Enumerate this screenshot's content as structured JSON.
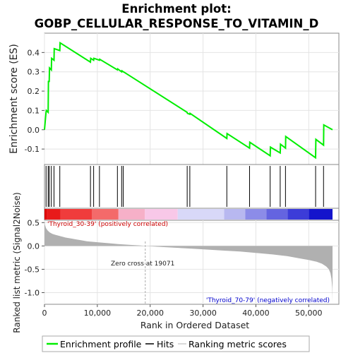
{
  "chart_data": {
    "type": "line",
    "title_line1": "Enrichment plot:",
    "title_line2": "GOBP_CELLULAR_RESPONSE_TO_VITAMIN_D",
    "ylabel_top": "Enrichment score (ES)",
    "ylabel_bottom": "Ranked list metric (Signal2Noise)",
    "xlabel": "Rank in Ordered Dataset",
    "xlim": [
      0,
      55000
    ],
    "es_ylim": [
      -0.18,
      0.5
    ],
    "metric_ylim": [
      -1.25,
      0.55
    ],
    "x_ticks": [
      0,
      10000,
      20000,
      30000,
      40000,
      50000
    ],
    "x_tick_labels": [
      "0",
      "10,000",
      "20,000",
      "30,000",
      "40,000",
      "50,000"
    ],
    "es_ticks": [
      -0.1,
      0.0,
      0.1,
      0.2,
      0.3,
      0.4
    ],
    "es_tick_labels": [
      "-0.1",
      "0.0",
      "0.1",
      "0.2",
      "0.3",
      "0.4"
    ],
    "metric_ticks": [
      -1.0,
      -0.5,
      0.0,
      0.5
    ],
    "metric_tick_labels": [
      "-1.0",
      "-0.5",
      "0.0",
      "0.5"
    ],
    "series": [
      {
        "name": "Enrichment profile",
        "x": [
          0,
          300,
          350,
          700,
          750,
          900,
          950,
          1300,
          1350,
          1800,
          1850,
          2900,
          2950,
          8700,
          8750,
          9300,
          9350,
          10400,
          10450,
          13800,
          13850,
          14600,
          14650,
          14900,
          14950,
          27000,
          27050,
          27500,
          27550,
          34500,
          34550,
          38800,
          38850,
          42700,
          42750,
          44600,
          44650,
          45600,
          45650,
          51300,
          51350,
          52800,
          52850,
          54500
        ],
        "y": [
          0.0,
          0.09,
          0.1,
          0.09,
          0.25,
          0.25,
          0.32,
          0.31,
          0.37,
          0.36,
          0.42,
          0.41,
          0.45,
          0.35,
          0.37,
          0.36,
          0.37,
          0.36,
          0.365,
          0.31,
          0.315,
          0.3,
          0.305,
          0.3,
          0.3,
          0.09,
          0.085,
          0.08,
          0.085,
          -0.045,
          -0.02,
          -0.095,
          -0.065,
          -0.135,
          -0.09,
          -0.12,
          -0.075,
          -0.095,
          -0.035,
          -0.145,
          -0.05,
          -0.08,
          0.025,
          0.0
        ]
      }
    ],
    "hits": [
      300,
      700,
      900,
      1300,
      1800,
      2900,
      8700,
      9300,
      10400,
      13800,
      14600,
      14900,
      27000,
      27500,
      34500,
      38800,
      42700,
      44600,
      45600,
      51300,
      52800
    ],
    "zero_cross": 19071,
    "zero_cross_label": "Zero cross at 19071",
    "pos_label": "'Thyroid_30-39' (positively correlated)",
    "neg_label": "'Thyroid_70-79' (negatively correlated)",
    "legend": [
      "Enrichment profile",
      "Hits",
      "Ranking metric scores"
    ],
    "colors": {
      "es_line": "#00ee00",
      "hits": "#000000",
      "metric_fill": "#b0b0b0",
      "pos_text": "#cc0000",
      "neg_text": "#0000cc",
      "zero_cross_line": "#aaaaaa"
    },
    "heatbar_segments": [
      {
        "x0": 0,
        "x1": 500,
        "color": "#dd0000"
      },
      {
        "x0": 500,
        "x1": 3000,
        "color": "#e81a1a"
      },
      {
        "x0": 3000,
        "x1": 9000,
        "color": "#f03c3c"
      },
      {
        "x0": 9000,
        "x1": 14000,
        "color": "#f46a6a"
      },
      {
        "x0": 14000,
        "x1": 19000,
        "color": "#f6b0c8"
      },
      {
        "x0": 19000,
        "x1": 25200,
        "color": "#f8c8e8"
      },
      {
        "x0": 25200,
        "x1": 34000,
        "color": "#d8d8f8"
      },
      {
        "x0": 34000,
        "x1": 38000,
        "color": "#b8b8f0"
      },
      {
        "x0": 38000,
        "x1": 42000,
        "color": "#8c8ce8"
      },
      {
        "x0": 42000,
        "x1": 46000,
        "color": "#6464e0"
      },
      {
        "x0": 46000,
        "x1": 50000,
        "color": "#3c3cd8"
      },
      {
        "x0": 50000,
        "x1": 54500,
        "color": "#1414cc"
      }
    ],
    "metric_profile": {
      "x": [
        0,
        100,
        300,
        600,
        1000,
        1500,
        2000,
        3000,
        4000,
        5000,
        6000,
        7000,
        8000,
        10000,
        12000,
        14000,
        16000,
        18000,
        19071,
        22000,
        25000,
        28000,
        31000,
        34000,
        37000,
        40000,
        43000,
        46000,
        48000,
        50000,
        51500,
        52500,
        53300,
        53800,
        54100,
        54300,
        54450,
        54500
      ],
      "y": [
        0.52,
        0.45,
        0.38,
        0.33,
        0.29,
        0.26,
        0.24,
        0.21,
        0.18,
        0.16,
        0.14,
        0.12,
        0.1,
        0.08,
        0.06,
        0.04,
        0.025,
        0.012,
        0.0,
        -0.02,
        -0.04,
        -0.06,
        -0.08,
        -0.1,
        -0.12,
        -0.15,
        -0.18,
        -0.22,
        -0.26,
        -0.3,
        -0.34,
        -0.38,
        -0.44,
        -0.5,
        -0.58,
        -0.7,
        -0.9,
        -1.2
      ]
    }
  }
}
